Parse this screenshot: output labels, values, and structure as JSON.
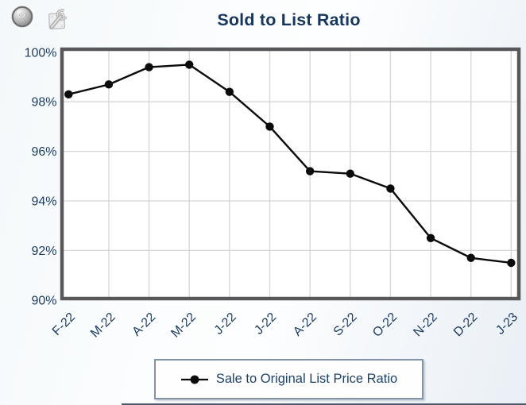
{
  "header": {
    "title": "Sold to List Ratio"
  },
  "icons": {
    "help_glyph": "?",
    "help": "question-mark-icon",
    "settings": "wrench-icon"
  },
  "chart_data": {
    "type": "line",
    "title": "Sold to List Ratio",
    "categories": [
      "F-22",
      "M-22",
      "A-22",
      "M-22",
      "J-22",
      "J-22",
      "A-22",
      "S-22",
      "O-22",
      "N-22",
      "D-22",
      "J-23"
    ],
    "series": [
      {
        "name": "Sale to Original List Price Ratio",
        "values": [
          98.3,
          98.7,
          99.4,
          99.5,
          98.4,
          97.0,
          95.2,
          95.1,
          94.5,
          92.5,
          91.7,
          91.5
        ]
      }
    ],
    "ylim": [
      90,
      100
    ],
    "y_tick_values": [
      100,
      98,
      96,
      94,
      92,
      90
    ],
    "y_ticks": [
      "100%",
      "98%",
      "96%",
      "94%",
      "92%",
      "90%"
    ],
    "xlabel": "",
    "ylabel": "",
    "grid": true,
    "legend_position": "bottom",
    "colors": {
      "line": "#0b0b0b",
      "marker": "#0b0b0b",
      "gridline": "#d6d6d6",
      "plot_border": "#58585a",
      "axis_text": "#1d3c62",
      "title_text": "#16365d",
      "plot_background": "#ffffff"
    }
  }
}
